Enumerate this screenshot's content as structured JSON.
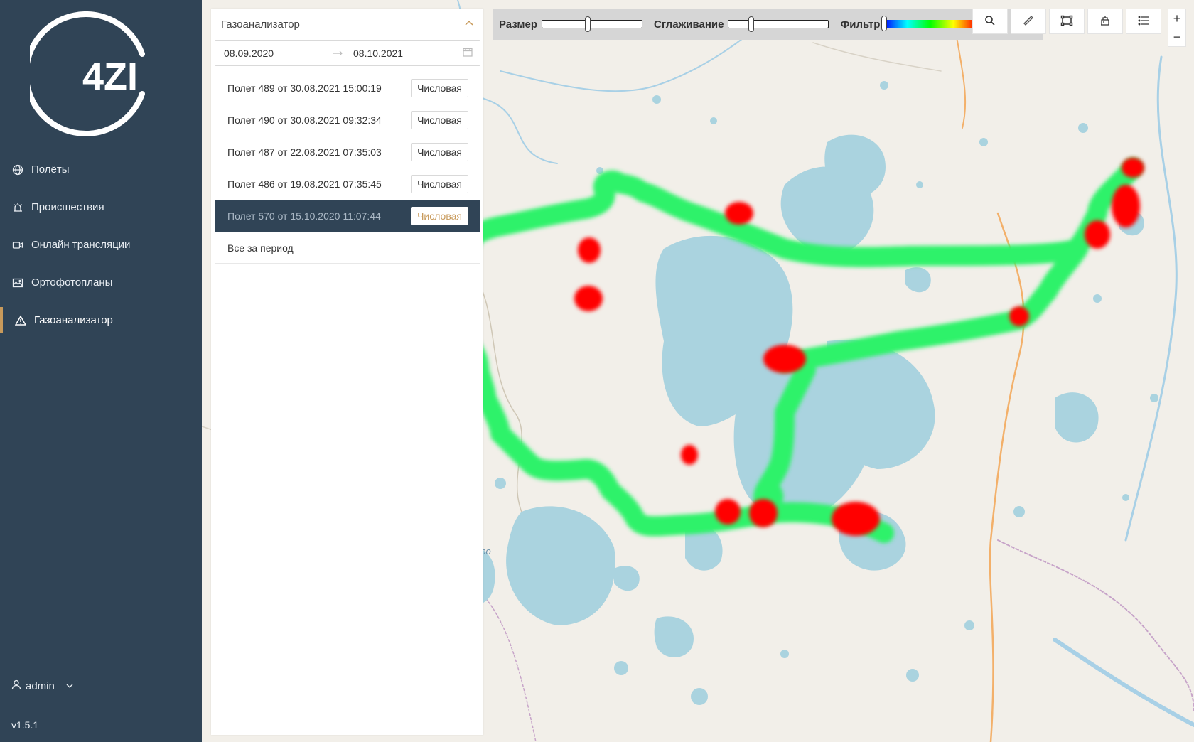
{
  "sidebar": {
    "logo_text": "4ZI",
    "items": [
      {
        "label": "Полёты",
        "icon": "globe-icon"
      },
      {
        "label": "Происшествия",
        "icon": "alarm-icon"
      },
      {
        "label": "Онлайн трансляции",
        "icon": "video-camera-icon"
      },
      {
        "label": "Ортофотопланы",
        "icon": "image-icon"
      },
      {
        "label": "Газоанализатор",
        "icon": "warning-triangle-icon",
        "active": true
      }
    ],
    "user": "admin",
    "version": "v1.5.1"
  },
  "panel": {
    "title": "Газоанализатор",
    "date_from": "08.09.2020",
    "date_to": "08.10.2021",
    "flights": [
      {
        "label": "Полет 489 от 30.08.2021 15:00:19",
        "tag": "Числовая"
      },
      {
        "label": "Полет 490 от 30.08.2021 09:32:34",
        "tag": "Числовая"
      },
      {
        "label": "Полет 487 от 22.08.2021 07:35:03",
        "tag": "Числовая"
      },
      {
        "label": "Полет 486 от 19.08.2021 07:35:45",
        "tag": "Числовая"
      },
      {
        "label": "Полет 570 от 15.10.2020 11:07:44",
        "tag": "Числовая",
        "selected": true
      }
    ],
    "all_period": "Все за период"
  },
  "toolbar": {
    "size_label": "Размер",
    "size_value": 0.45,
    "smooth_label": "Сглаживание",
    "smooth_value": 0.22,
    "filter_label": "Фильтр",
    "filter_value": 0.0,
    "tools": [
      "search-icon",
      "ruler-icon",
      "rectangle-select-icon",
      "building-icon",
      "list-icon"
    ]
  },
  "map": {
    "label_lake": "озеро",
    "zoom_in": "+",
    "zoom_out": "−"
  }
}
